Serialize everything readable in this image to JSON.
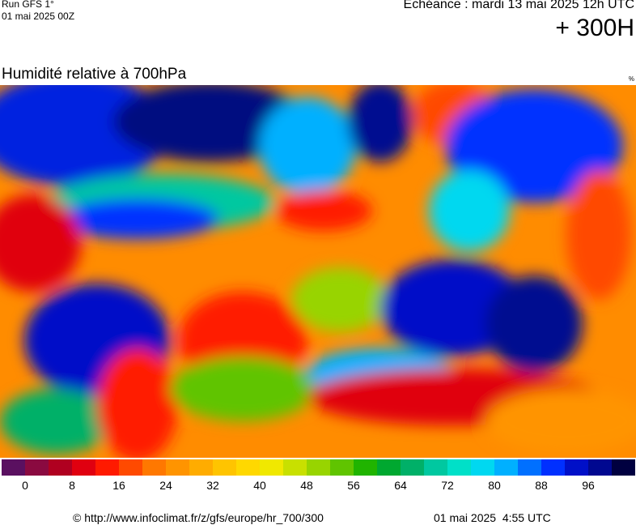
{
  "header": {
    "run": "Run GFS 1°",
    "run_date": "01 mai 2025 00Z",
    "valid_time": "Echéance : mardi 13 mai 2025 12h UTC",
    "lead": "+ 300H"
  },
  "title": "Humidité relative à 700hPa",
  "unit": "%",
  "colorbar": {
    "ticks": [
      0,
      8,
      16,
      24,
      32,
      40,
      48,
      56,
      64,
      72,
      80,
      88,
      96
    ],
    "colors": [
      "#5a1060",
      "#8a0a40",
      "#b00020",
      "#e00010",
      "#ff1a00",
      "#ff4a00",
      "#ff7800",
      "#ff9400",
      "#ffac00",
      "#ffc400",
      "#ffd800",
      "#f0e800",
      "#c8e000",
      "#98d400",
      "#60c400",
      "#20b400",
      "#00a830",
      "#00b068",
      "#00c8a0",
      "#00e0c8",
      "#00d8f0",
      "#00b0ff",
      "#0070ff",
      "#0030ff",
      "#0010c8",
      "#000890",
      "#000040"
    ]
  },
  "footer": {
    "source": "© http://www.infoclimat.fr/z/gfs/europe/hr_700/300",
    "generated": "01 mai 2025  4:55 UTC"
  }
}
